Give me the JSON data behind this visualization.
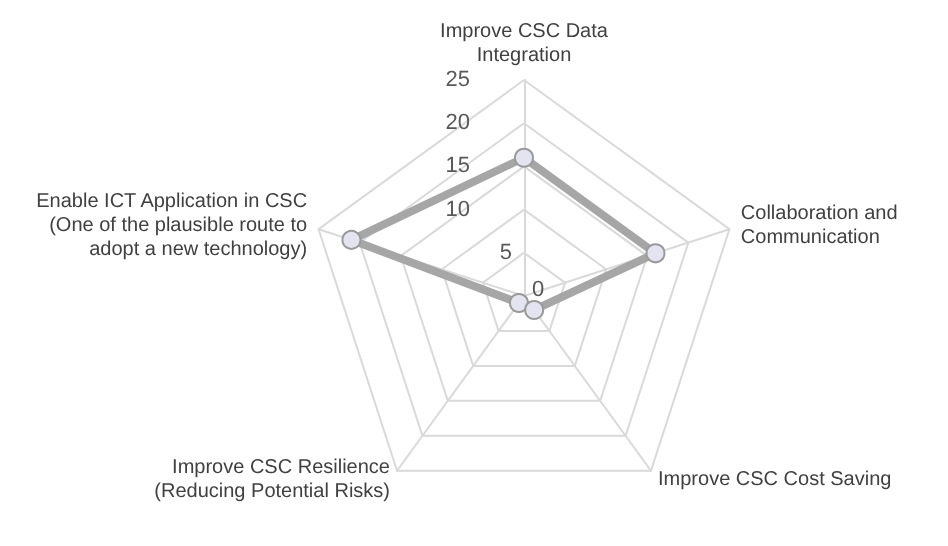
{
  "chart_data": {
    "type": "radar",
    "categories": [
      "Improve CSC Data Integration",
      "Collaboration and Communication",
      "Improve CSC Cost Saving",
      "Improve CSC Resilience (Reducing Potential Risks)",
      "Enable ICT Application in CSC (One of the plausible route to adopt a new technology)"
    ],
    "series": [
      {
        "color": "#a6a6a6",
        "values": [
          16,
          16,
          2,
          1,
          21
        ]
      }
    ],
    "ylim": [
      0,
      25
    ],
    "yticks": [
      0,
      5,
      10,
      15,
      20,
      25
    ],
    "marker": "circle"
  }
}
